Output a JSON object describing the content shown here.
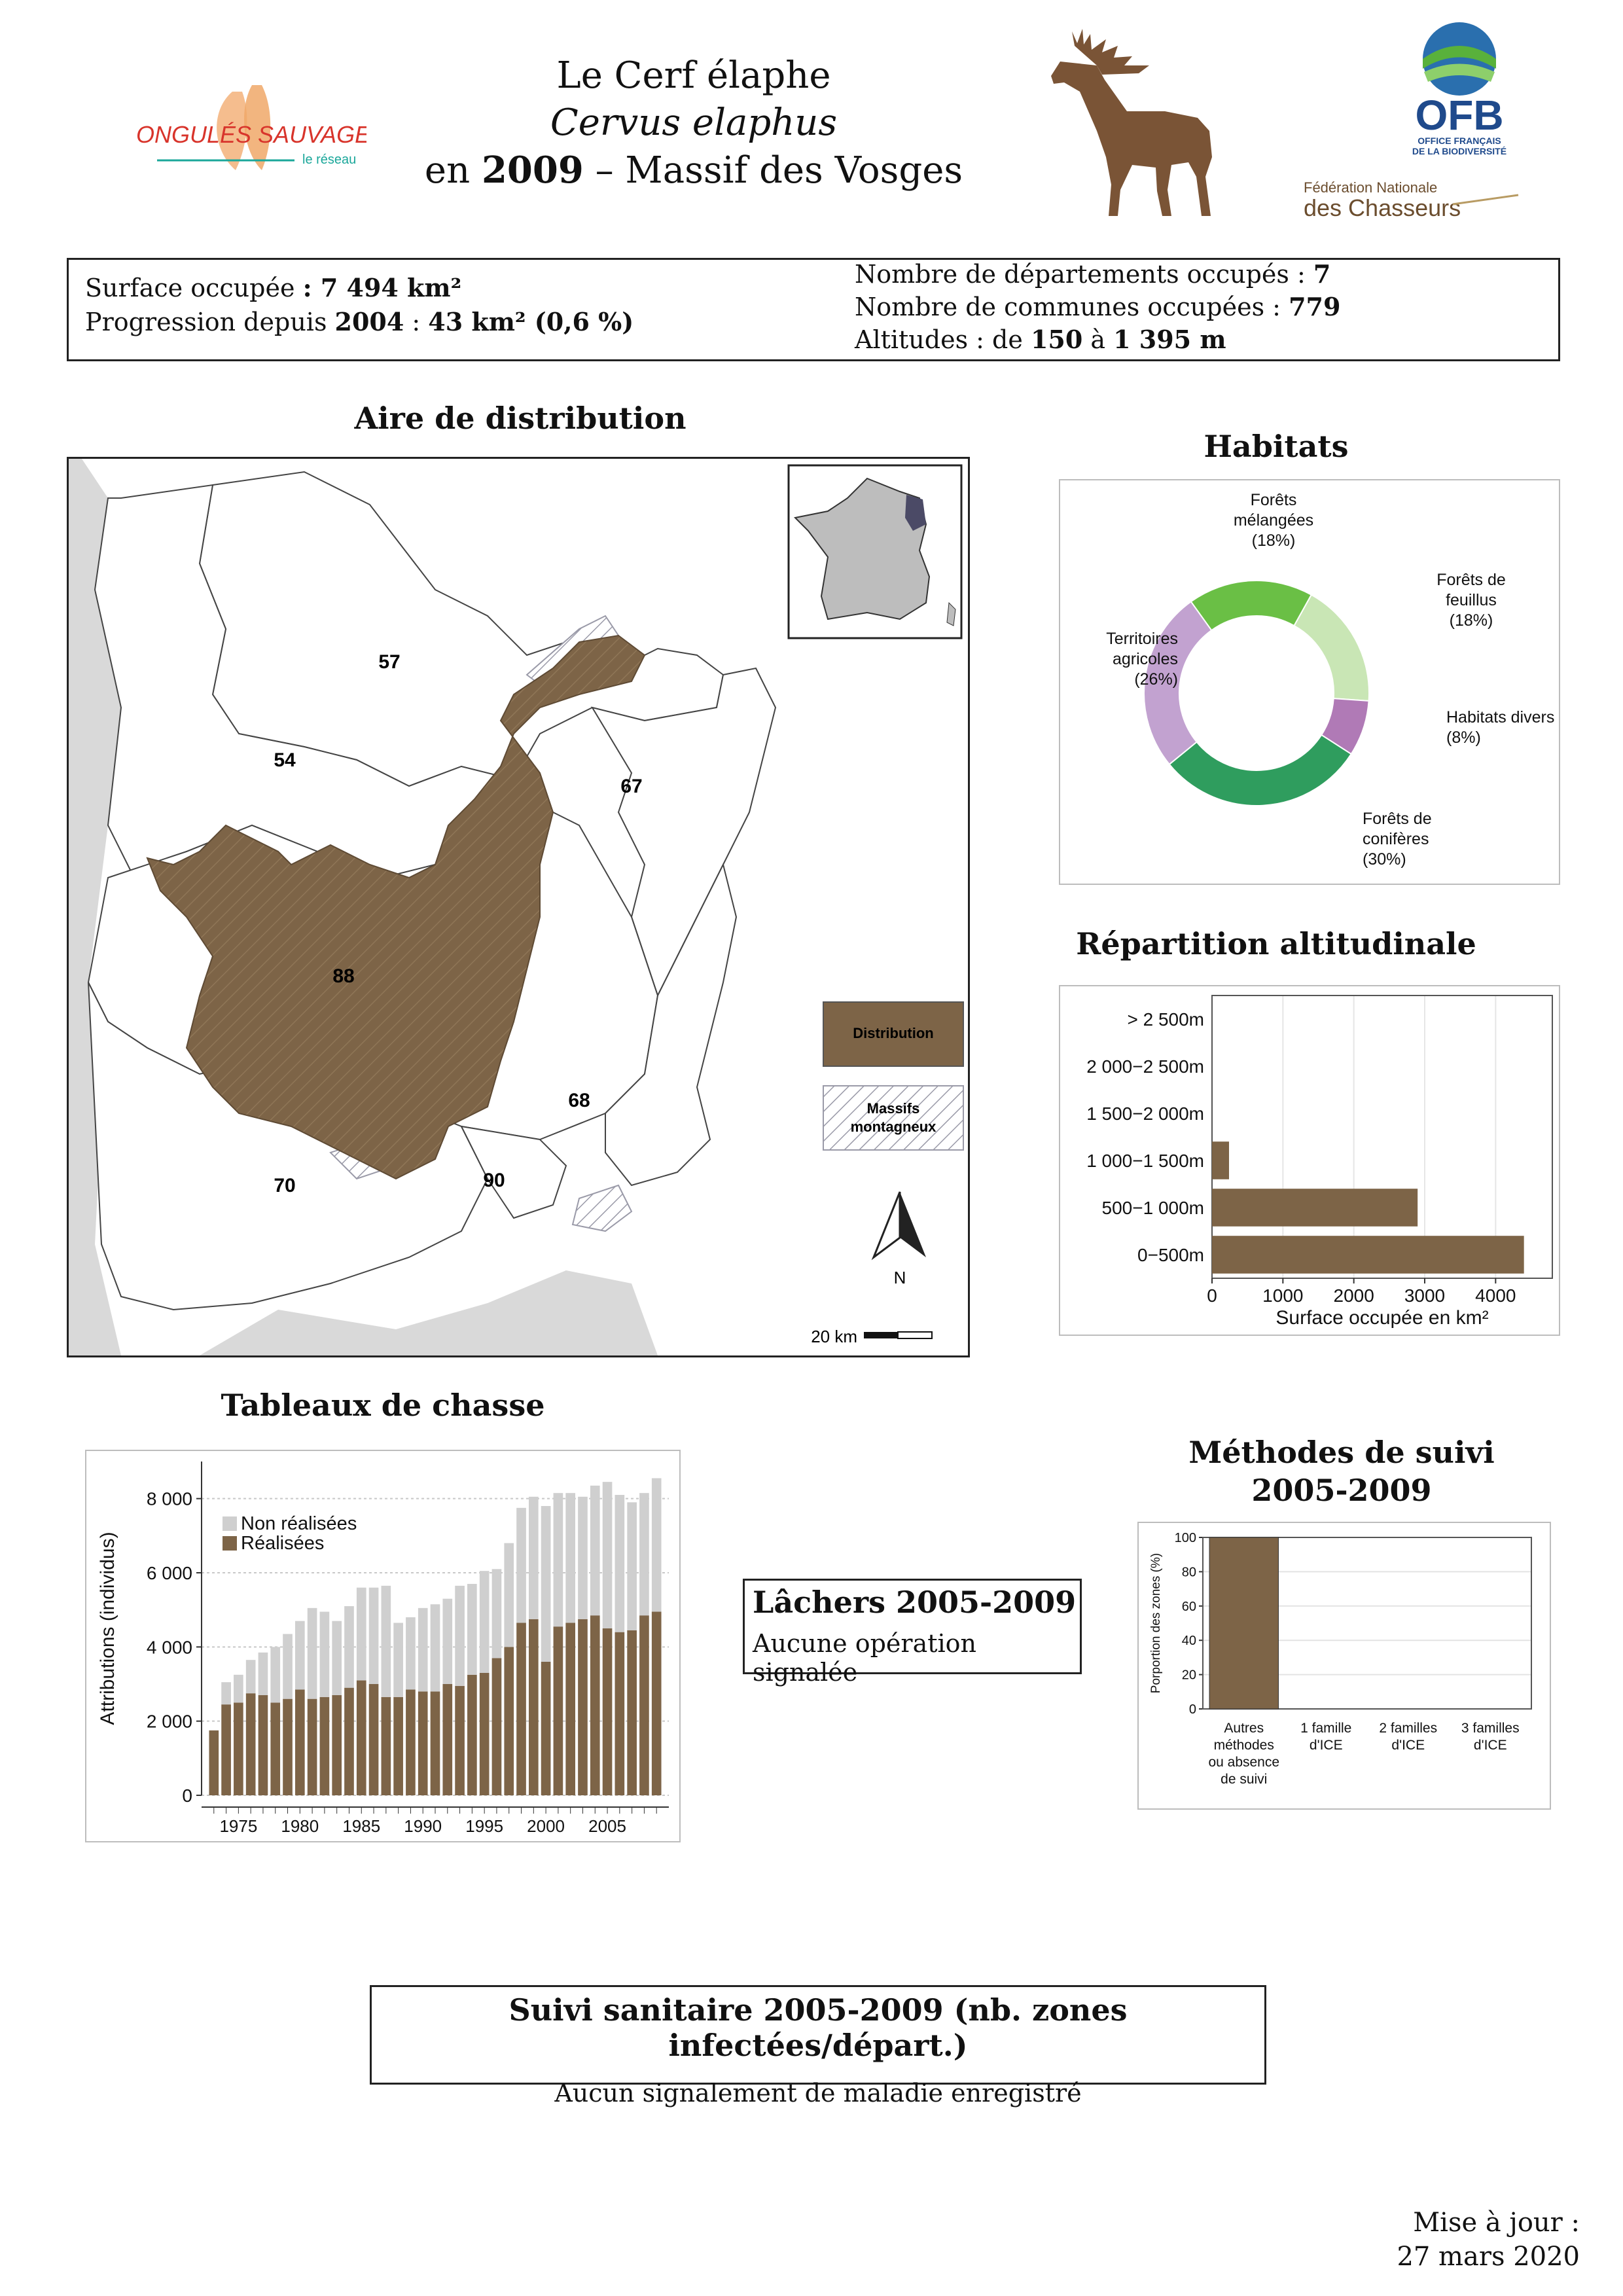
{
  "header": {
    "title": "Le Cerf élaphe",
    "latin": "Cervus elaphus",
    "year_prefix": "en",
    "year": "2009",
    "year_suffix": "– Massif des Vosges",
    "logos": {
      "ongules_main": "ONGULÉS SAUVAGES",
      "ongules_sub": "le réseau",
      "ofb_main": "OFB",
      "ofb_sub1": "OFFICE FRANÇAIS",
      "ofb_sub2": "DE LA BIODIVERSITÉ",
      "fnc_line1": "Fédération Nationale",
      "fnc_line2": "des Chasseurs"
    }
  },
  "summary": {
    "surface_label": "Surface occupée",
    "surface_value": "7 494 km²",
    "progression_label": "Progression depuis",
    "progression_year": "2004",
    "progression_value": "43 km² (0,6 %)",
    "departements_label": "Nombre de départements occupés :",
    "departements_value": "7",
    "communes_label": "Nombre de communes occupées :",
    "communes_value": "779",
    "altitudes_label": "Altitudes : de",
    "alt_min": "150",
    "alt_to": "à",
    "alt_max": "1 395 m"
  },
  "map": {
    "title": "Aire de distribution",
    "departments": [
      "57",
      "54",
      "67",
      "88",
      "68",
      "70",
      "90"
    ],
    "legend_distribution": "Distribution",
    "legend_massifs_1": "Massifs",
    "legend_massifs_2": "montagneux",
    "north": "N",
    "scale": "20 km",
    "colors": {
      "distribution": "#7d6447",
      "background": "#d9d9d9"
    }
  },
  "habitats": {
    "title": "Habitats",
    "chart_data": {
      "type": "pie",
      "labels": [
        "Forêts mélangées",
        "Forêts de feuillus",
        "Habitats divers",
        "Forêts de conifères",
        "Territoires agricoles"
      ],
      "values": [
        18,
        18,
        8,
        30,
        26
      ],
      "colors": [
        "#6abf45",
        "#c9e6b5",
        "#b07ab6",
        "#2f9d5e",
        "#c2a2d0"
      ]
    },
    "label_lines": {
      "melangees": [
        "Forêts",
        "mélangées",
        "(18%)"
      ],
      "feuillus": [
        "Forêts de",
        "feuillus",
        "(18%)"
      ],
      "divers": [
        "Habitats divers",
        "(8%)"
      ],
      "coniferes": [
        "Forêts de",
        "conifères",
        "(30%)"
      ],
      "agricoles": [
        "Territoires",
        "agricoles",
        "(26%)"
      ]
    }
  },
  "altitude": {
    "title": "Répartition altitudinale",
    "chart_data": {
      "type": "bar",
      "orientation": "horizontal",
      "categories": [
        "0−500m",
        "500−1 000m",
        "1 000−1 500m",
        "1 500−2 000m",
        "2 000−2 500m",
        "> 2 500m"
      ],
      "values": [
        4400,
        2900,
        240,
        0,
        0,
        0
      ],
      "xlabel": "Surface occupée en km²",
      "xticks": [
        "0",
        "1000",
        "2000",
        "3000",
        "4000"
      ],
      "xlim": [
        0,
        4800
      ],
      "color": "#7d6447"
    }
  },
  "chasse": {
    "title": "Tableaux de chasse",
    "chart_data": {
      "type": "bar",
      "stacked": true,
      "ylabel": "Attributions (individus)",
      "yticks": [
        "0",
        "2 000",
        "4 000",
        "6 000",
        "8 000"
      ],
      "ylim": [
        0,
        9000
      ],
      "xticks": [
        "1975",
        "1980",
        "1985",
        "1990",
        "1995",
        "2000",
        "2005"
      ],
      "x": [
        1973,
        1974,
        1975,
        1976,
        1977,
        1978,
        1979,
        1980,
        1981,
        1982,
        1983,
        1984,
        1985,
        1986,
        1987,
        1988,
        1989,
        1990,
        1991,
        1992,
        1993,
        1994,
        1995,
        1996,
        1997,
        1998,
        1999,
        2000,
        2001,
        2002,
        2003,
        2004,
        2005,
        2006,
        2007,
        2008,
        2009
      ],
      "series": [
        {
          "name": "Réalisées",
          "color": "#7d6447",
          "values": [
            1750,
            2450,
            2500,
            2750,
            2700,
            2500,
            2600,
            2850,
            2600,
            2650,
            2700,
            2900,
            3100,
            3000,
            2650,
            2650,
            2850,
            2800,
            2800,
            3000,
            2950,
            3250,
            3300,
            3700,
            4000,
            4650,
            4750,
            3600,
            4550,
            4650,
            4750,
            4850,
            4500,
            4400,
            4450,
            4850,
            4950
          ]
        },
        {
          "name": "Non réalisées",
          "color": "#cfcfcf",
          "values": [
            0,
            600,
            750,
            900,
            1150,
            1500,
            1750,
            1850,
            2450,
            2300,
            2000,
            2200,
            2500,
            2600,
            3000,
            2000,
            1950,
            2250,
            2350,
            2300,
            2700,
            2450,
            2750,
            2400,
            2800,
            3100,
            3300,
            4200,
            3600,
            3500,
            3300,
            3500,
            3950,
            3700,
            3450,
            3300,
            3600
          ]
        }
      ]
    }
  },
  "lachers": {
    "title": "Lâchers 2005-2009",
    "text": "Aucune opération signalée"
  },
  "methodes": {
    "title_1": "Méthodes de suivi",
    "title_2": "2005-2009",
    "chart_data": {
      "type": "bar",
      "ylabel": "Porportion des zones (%)",
      "yticks": [
        "0",
        "20",
        "40",
        "60",
        "80",
        "100"
      ],
      "ylim": [
        0,
        100
      ],
      "categories": [
        "Autres méthodes ou absence de suivi",
        "1 famille d'ICE",
        "2 familles d'ICE",
        "3 familles d'ICE"
      ],
      "category_lines": [
        [
          "Autres",
          "méthodes",
          "ou absence",
          "de suivi"
        ],
        [
          "1 famille",
          "d'ICE"
        ],
        [
          "2 familles",
          "d'ICE"
        ],
        [
          "3 familles",
          "d'ICE"
        ]
      ],
      "values": [
        100,
        0,
        0,
        0
      ],
      "color": "#7d6447"
    }
  },
  "sanitaire": {
    "title": "Suivi sanitaire 2005-2009 (nb. zones infectées/départ.)",
    "text": "Aucun signalement de maladie enregistré"
  },
  "footer": {
    "line1": "Mise à jour :",
    "line2": "27 mars 2020"
  }
}
